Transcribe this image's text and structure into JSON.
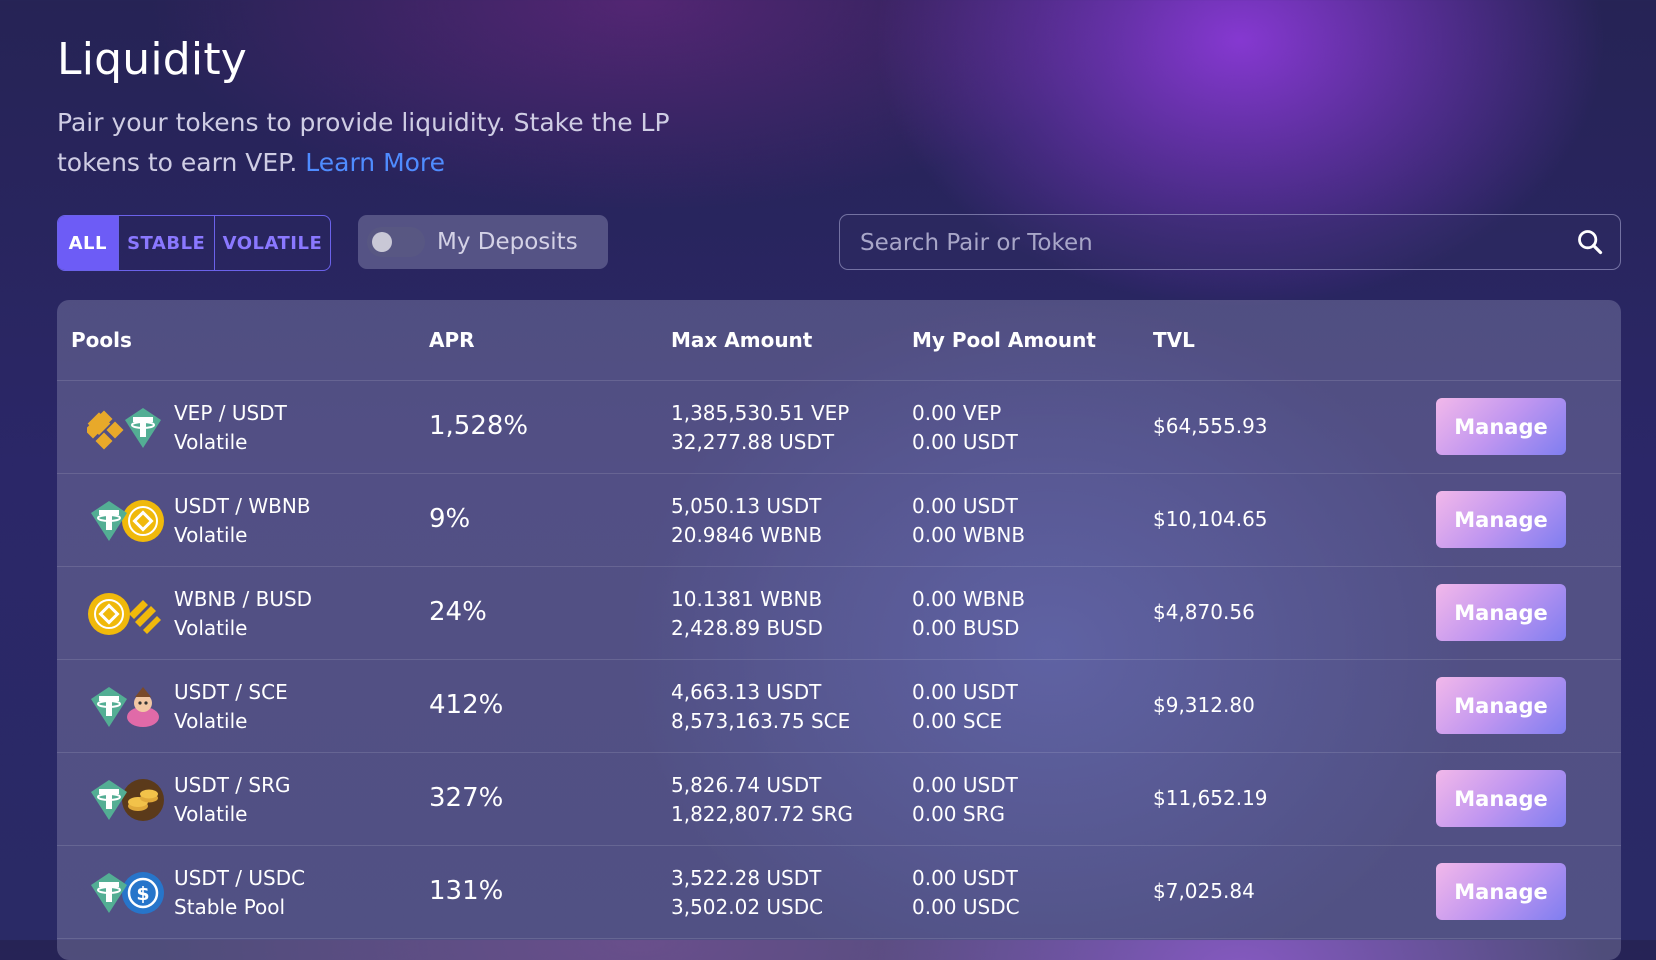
{
  "header": {
    "title": "Liquidity",
    "subtitle": "Pair your tokens to provide liquidity. Stake the LP tokens to earn VEP.",
    "learn_more": "Learn More"
  },
  "filters": {
    "all": "ALL",
    "stable": "STABLE",
    "volatile": "VOLATILE",
    "active": "ALL"
  },
  "deposits_toggle": {
    "label": "My Deposits",
    "on": false
  },
  "search": {
    "placeholder": "Search Pair or Token"
  },
  "table": {
    "headers": {
      "pools": "Pools",
      "apr": "APR",
      "max_amount": "Max Amount",
      "my_pool_amount": "My Pool Amount",
      "tvl": "TVL"
    },
    "manage_label": "Manage",
    "rows": [
      {
        "pair": "VEP / USDT",
        "type": "Volatile",
        "apr": "1,528%",
        "max1": "1,385,530.51 VEP",
        "max2": "32,277.88 USDT",
        "my1": "0.00 VEP",
        "my2": "0.00 USDT",
        "tvl": "$64,555.93",
        "icon1": "vep-icon",
        "icon2": "usdt-icon"
      },
      {
        "pair": "USDT / WBNB",
        "type": "Volatile",
        "apr": "9%",
        "max1": "5,050.13 USDT",
        "max2": "20.9846 WBNB",
        "my1": "0.00 USDT",
        "my2": "0.00 WBNB",
        "tvl": "$10,104.65",
        "icon1": "usdt-icon",
        "icon2": "wbnb-icon"
      },
      {
        "pair": "WBNB / BUSD",
        "type": "Volatile",
        "apr": "24%",
        "max1": "10.1381 WBNB",
        "max2": "2,428.89 BUSD",
        "my1": "0.00 WBNB",
        "my2": "0.00 BUSD",
        "tvl": "$4,870.56",
        "icon1": "wbnb-icon",
        "icon2": "busd-icon"
      },
      {
        "pair": "USDT / SCE",
        "type": "Volatile",
        "apr": "412%",
        "max1": "4,663.13 USDT",
        "max2": "8,573,163.75 SCE",
        "my1": "0.00 USDT",
        "my2": "0.00 SCE",
        "tvl": "$9,312.80",
        "icon1": "usdt-icon",
        "icon2": "sce-icon"
      },
      {
        "pair": "USDT / SRG",
        "type": "Volatile",
        "apr": "327%",
        "max1": "5,826.74 USDT",
        "max2": "1,822,807.72 SRG",
        "my1": "0.00 USDT",
        "my2": "0.00 SRG",
        "tvl": "$11,652.19",
        "icon1": "usdt-icon",
        "icon2": "srg-icon"
      },
      {
        "pair": "USDT / USDC",
        "type": "Stable Pool",
        "apr": "131%",
        "max1": "3,522.28 USDT",
        "max2": "3,502.02 USDC",
        "my1": "0.00 USDT",
        "my2": "0.00 USDC",
        "tvl": "$7,025.84",
        "icon1": "usdt-icon",
        "icon2": "usdc-icon"
      }
    ]
  },
  "colors": {
    "accent": "#6d5cf6",
    "link": "#4f8cff",
    "usdt": "#53ae94",
    "bnb": "#f0b90b",
    "usdc": "#2775ca"
  }
}
